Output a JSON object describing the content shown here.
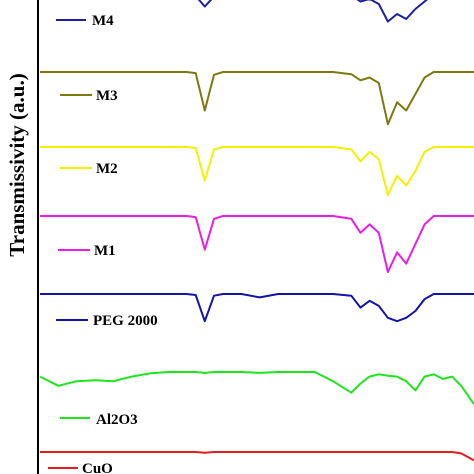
{
  "chart_data": {
    "type": "line",
    "title": "",
    "xlabel": "",
    "ylabel": "Transmissivity (a.u.)",
    "grid": false,
    "legend": "inline labels beside each trace",
    "x": [
      0,
      20,
      40,
      60,
      80,
      100,
      120,
      140,
      160,
      170,
      180,
      190,
      200,
      220,
      240,
      260,
      280,
      300,
      320,
      340,
      350,
      360,
      370,
      380,
      390,
      400,
      410,
      420,
      430,
      440,
      450,
      460,
      474
    ],
    "series": [
      {
        "name": "M4",
        "color": "#1f1f9e",
        "values": [
          null,
          null,
          null,
          null,
          null,
          null,
          null,
          null,
          null,
          0.96,
          0.75,
          0.95,
          1.0,
          1.0,
          1.0,
          1.0,
          1.0,
          1.0,
          1.0,
          0.98,
          0.85,
          0.9,
          0.8,
          0.45,
          0.6,
          0.5,
          0.7,
          0.85,
          1.0,
          1.0,
          1.0,
          1.0,
          1.0
        ]
      },
      {
        "name": "M3",
        "color": "#7a7a10",
        "values": [
          1.0,
          1.0,
          1.0,
          1.0,
          1.0,
          1.0,
          1.0,
          1.0,
          1.0,
          0.98,
          0.3,
          0.95,
          1.0,
          1.0,
          1.0,
          1.0,
          1.0,
          1.0,
          1.0,
          0.96,
          0.85,
          0.9,
          0.8,
          0.05,
          0.45,
          0.3,
          0.6,
          0.9,
          1.0,
          1.0,
          1.0,
          1.0,
          1.0
        ]
      },
      {
        "name": "M2",
        "color": "#f2f200",
        "values": [
          1.0,
          1.0,
          1.0,
          1.0,
          1.0,
          1.0,
          1.0,
          1.0,
          1.0,
          0.98,
          0.3,
          0.95,
          1.0,
          1.0,
          1.0,
          1.0,
          1.0,
          1.0,
          1.0,
          0.95,
          0.7,
          0.9,
          0.75,
          0.0,
          0.4,
          0.2,
          0.5,
          0.9,
          1.0,
          1.0,
          1.0,
          1.0,
          1.0
        ]
      },
      {
        "name": "M1",
        "color": "#e81ee8",
        "values": [
          1.0,
          1.0,
          1.0,
          1.0,
          1.0,
          1.0,
          1.0,
          1.0,
          1.0,
          0.98,
          0.4,
          0.95,
          1.0,
          1.0,
          1.0,
          1.0,
          1.0,
          1.0,
          1.0,
          0.95,
          0.7,
          0.85,
          0.7,
          0.0,
          0.35,
          0.15,
          0.5,
          0.85,
          1.0,
          1.0,
          1.0,
          1.0,
          1.0
        ]
      },
      {
        "name": "PEG 2000",
        "color": "#1414a8",
        "values": [
          1.0,
          1.0,
          1.0,
          1.0,
          1.0,
          1.0,
          1.0,
          1.0,
          1.0,
          0.97,
          0.2,
          0.95,
          1.0,
          1.0,
          0.9,
          1.0,
          1.0,
          1.0,
          1.0,
          0.95,
          0.6,
          0.8,
          0.65,
          0.3,
          0.2,
          0.3,
          0.5,
          0.85,
          1.0,
          1.0,
          1.0,
          1.0,
          1.0
        ]
      },
      {
        "name": "Al2O3",
        "color": "#1ee61e",
        "values": [
          0.9,
          0.7,
          0.8,
          0.82,
          0.8,
          0.9,
          0.97,
          1.0,
          1.0,
          1.0,
          0.98,
          1.0,
          1.0,
          1.0,
          0.98,
          1.0,
          1.0,
          1.0,
          0.8,
          0.55,
          0.75,
          0.9,
          0.95,
          0.92,
          0.9,
          0.8,
          0.6,
          0.9,
          0.95,
          0.85,
          0.9,
          0.7,
          0.3
        ]
      },
      {
        "name": "CuO",
        "color": "#e01e1e",
        "values": [
          1.0,
          1.0,
          1.0,
          1.0,
          1.0,
          1.0,
          1.0,
          1.0,
          1.0,
          1.0,
          0.95,
          1.0,
          1.0,
          1.0,
          1.0,
          1.0,
          1.0,
          1.0,
          1.0,
          1.0,
          1.0,
          1.0,
          1.0,
          1.0,
          1.0,
          1.0,
          1.0,
          1.0,
          1.0,
          1.0,
          1.0,
          0.9,
          0.4
        ]
      }
    ]
  }
}
